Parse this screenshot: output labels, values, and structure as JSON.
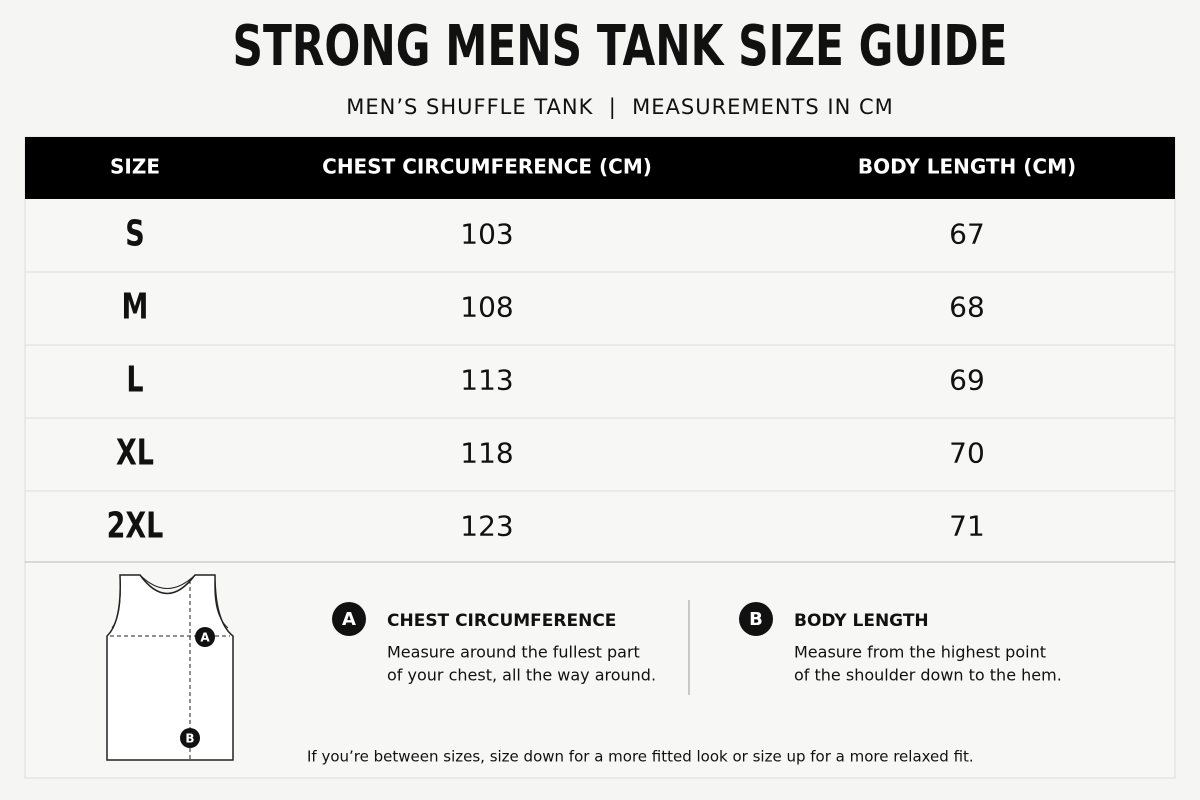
{
  "header": {
    "title": "STRONG MENS TANK SIZE GUIDE",
    "subtitle": "MEN’S SHUFFLE TANK  |  MEASUREMENTS IN CM"
  },
  "table": {
    "columns": [
      "SIZE",
      "CHEST CIRCUMFERENCE (CM)",
      "BODY LENGTH (CM)"
    ],
    "rows": [
      [
        "S",
        "103",
        "67"
      ],
      [
        "M",
        "108",
        "68"
      ],
      [
        "L",
        "113",
        "69"
      ],
      [
        "XL",
        "118",
        "70"
      ],
      [
        "2XL",
        "123",
        "71"
      ]
    ]
  },
  "guide": {
    "items": [
      {
        "marker": "A",
        "title": "CHEST CIRCUMFERENCE",
        "text": [
          "Measure around the fullest part",
          "of your chest, all the way around."
        ]
      },
      {
        "marker": "B",
        "title": "BODY LENGTH",
        "text": [
          "Measure from the highest point",
          "of the shoulder down to the hem."
        ]
      }
    ],
    "note": "If you’re between sizes, size down for a more fitted look or size up for a more relaxed fit."
  }
}
